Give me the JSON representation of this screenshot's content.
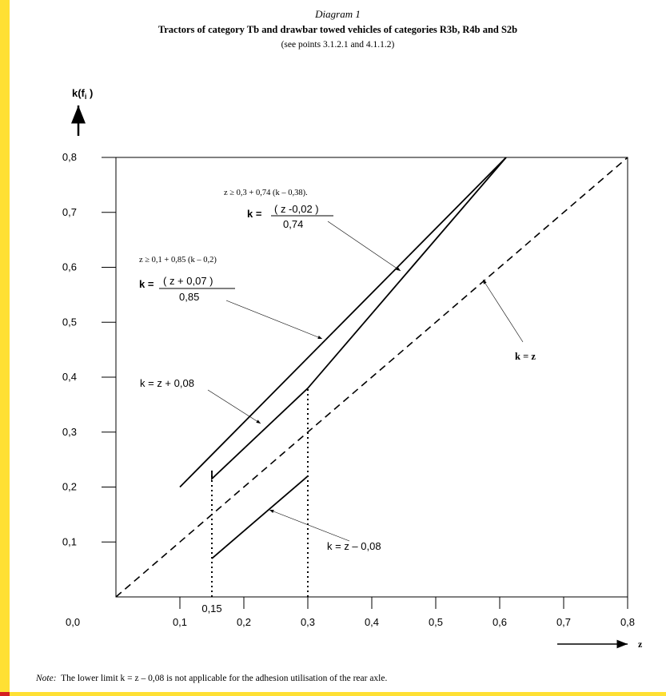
{
  "header": {
    "label": "Diagram 1",
    "title": "Tractors of category Tb and drawbar towed vehicles of categories R3b, R4b and S2b",
    "subtitle": "(see points 3.1.2.1 and 4.1.1.2)"
  },
  "note": {
    "label": "Note:",
    "text": "The lower limit k = z – 0,08 is not applicable for the adhesion utilisation of the rear axle."
  },
  "colors": {
    "page_border": "#FFE033",
    "corner_mark": "#D42020",
    "ink": "#000000"
  },
  "chart_data": {
    "type": "line",
    "xlabel": "z",
    "ylabel_main": "k(f",
    "ylabel_sub": "i",
    "ylabel_close": " )",
    "xlim": [
      0,
      0.8
    ],
    "ylim": [
      0,
      0.8
    ],
    "x_ticks": [
      "0,1",
      "0,2",
      "0,3",
      "0,4",
      "0,5",
      "0,6",
      "0,7",
      "0,8"
    ],
    "x_tick_values": [
      0.1,
      0.2,
      0.3,
      0.4,
      0.5,
      0.6,
      0.7,
      0.8
    ],
    "y_ticks": [
      "0,1",
      "0,2",
      "0,3",
      "0,4",
      "0,5",
      "0,6",
      "0,7",
      "0,8"
    ],
    "y_tick_values": [
      0.1,
      0.2,
      0.3,
      0.4,
      0.5,
      0.6,
      0.7,
      0.8
    ],
    "origin_label": "0,0",
    "extra_x_tick": {
      "label": "0,15",
      "value": 0.15
    },
    "series": [
      {
        "key": "upper",
        "style": "solid",
        "points": [
          [
            0.1,
            0.2
          ],
          [
            0.61,
            0.8
          ]
        ]
      },
      {
        "key": "middle",
        "style": "solid",
        "points": [
          [
            0.15,
            0.23
          ],
          [
            0.15,
            0.215
          ],
          [
            0.3,
            0.38
          ],
          [
            0.61,
            0.8
          ]
        ]
      },
      {
        "key": "lower",
        "style": "solid",
        "points": [
          [
            0.15,
            0.07
          ],
          [
            0.3,
            0.22
          ]
        ]
      },
      {
        "key": "diagonal",
        "style": "dashed",
        "points": [
          [
            0.0,
            0.0
          ],
          [
            0.8,
            0.8
          ]
        ]
      },
      {
        "key": "limit015",
        "style": "dotted",
        "points": [
          [
            0.15,
            0.0
          ],
          [
            0.15,
            0.23
          ]
        ]
      },
      {
        "key": "limit030",
        "style": "dotted",
        "points": [
          [
            0.3,
            0.0
          ],
          [
            0.3,
            0.38
          ]
        ]
      }
    ],
    "annotations": {
      "cond1": "z ≥ 0,3 + 0,74 (k – 0,38).",
      "eq1_lhs": "k =",
      "eq1_num": "( z -0,02 )",
      "eq1_den": "0,74",
      "cond2": "z ≥ 0,1 + 0,85 (k – 0,2)",
      "eq2_lhs": "k =",
      "eq2_num": "( z + 0,07 )",
      "eq2_den": "0,85",
      "eq_plus": "k = z + 0,08",
      "eq_minus": "k = z – 0,08",
      "eq_equal": "k = z"
    },
    "grid": false
  }
}
